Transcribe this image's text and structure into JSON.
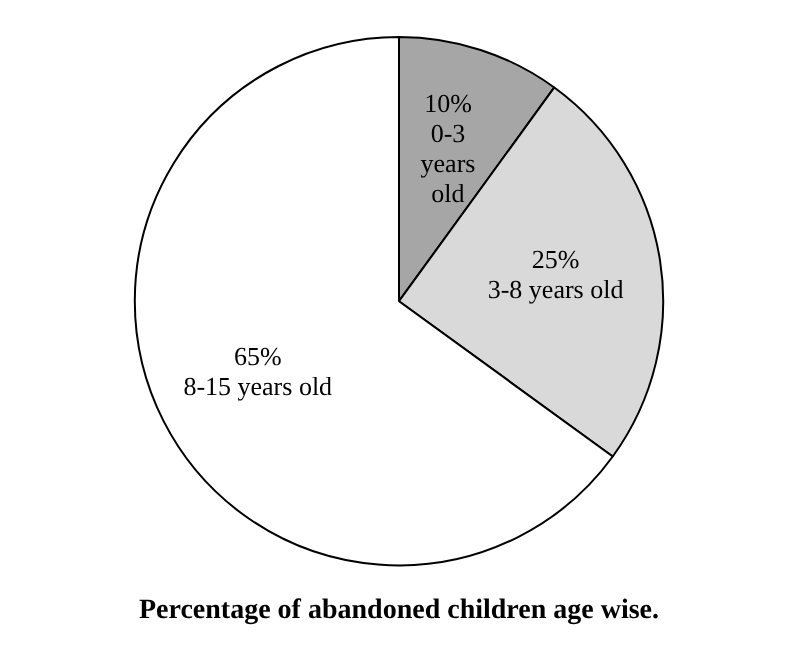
{
  "chart_data": {
    "type": "pie",
    "title": "Percentage of abandoned children age wise.",
    "categories": [
      "0-3 years old",
      "3-8 years old",
      "8-15 years old"
    ],
    "values": [
      10,
      25,
      65
    ],
    "colors": [
      "#a6a6a6",
      "#d9d9d9",
      "#ffffff"
    ],
    "value_labels": [
      "10%",
      "25%",
      "65%"
    ],
    "legend": false
  }
}
